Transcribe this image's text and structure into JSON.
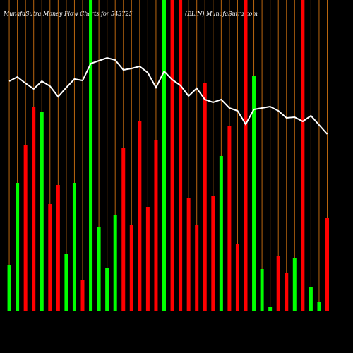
{
  "chart_data": {
    "type": "bar-line",
    "title": "MunafaSutra  Money Flow  Charts for 543725",
    "subtitle": "(ELIN) MunafaSutra.com",
    "categories": [
      null,
      null,
      null,
      null,
      null,
      null,
      null,
      null,
      null,
      null,
      null,
      null,
      null,
      null,
      null,
      null,
      null,
      null,
      null,
      null,
      null,
      null,
      null,
      null,
      null,
      null,
      null,
      null,
      null,
      null,
      null,
      null,
      null,
      null,
      null,
      null,
      null,
      null,
      null,
      null
    ],
    "ylim": [
      0,
      440
    ],
    "grid": true,
    "grid_color": "#b8650f",
    "background": "#000000",
    "series": [
      {
        "kind": "bar",
        "values": [
          64,
          181,
          234,
          289,
          282,
          151,
          178,
          80,
          181,
          44,
          440,
          119,
          61,
          135,
          230,
          122,
          269,
          147,
          242,
          440,
          440,
          440,
          160,
          122,
          322,
          162,
          219,
          262,
          94,
          440,
          333,
          59,
          5,
          77,
          54,
          75,
          440,
          33,
          12,
          131
        ],
        "colors": [
          "#00ff00",
          "#00ff00",
          "#ff0000",
          "#ff0000",
          "#00ff00",
          "#ff0000",
          "#ff0000",
          "#00ff00",
          "#00ff00",
          "#ff0000",
          "#00ff00",
          "#00ff00",
          "#00ff00",
          "#00ff00",
          "#ff0000",
          "#ff0000",
          "#ff0000",
          "#ff0000",
          "#ff0000",
          "#00ff00",
          "#ff0000",
          "#ff0000",
          "#ff0000",
          "#ff0000",
          "#ff0000",
          "#ff0000",
          "#00ff00",
          "#ff0000",
          "#ff0000",
          "#ff0000",
          "#00ff00",
          "#00ff00",
          "#00ff00",
          "#ff0000",
          "#ff0000",
          "#00ff00",
          "#ff0000",
          "#00ff00",
          "#00ff00",
          "#ff0000"
        ]
      },
      {
        "kind": "line",
        "color": "#ffffff",
        "values": [
          325,
          331,
          322,
          314,
          325,
          318,
          303,
          316,
          328,
          326,
          350,
          354,
          358,
          355,
          341,
          343,
          346,
          337,
          316,
          339,
          327,
          319,
          304,
          315,
          299,
          295,
          299,
          287,
          283,
          264,
          285,
          287,
          289,
          283,
          273,
          274,
          268,
          276,
          263,
          250
        ]
      }
    ]
  }
}
